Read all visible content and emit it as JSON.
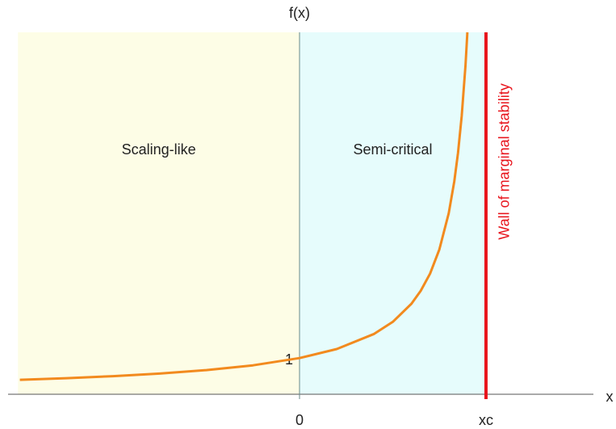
{
  "chart_data": {
    "type": "line",
    "x_label": "x",
    "y_label": "f(x)",
    "xlim": [
      -1.563,
      1.576
    ],
    "ylim": [
      0,
      10
    ],
    "xticks": [
      0,
      {
        "value": 1,
        "label": "xc"
      }
    ],
    "yticks": [
      1
    ],
    "series": [
      {
        "name": "f(x)",
        "color": "#f28a1e",
        "x": [
          -1.5,
          -1.25,
          -1,
          -0.75,
          -0.5,
          -0.25,
          0,
          0.2,
          0.4,
          0.5,
          0.6,
          0.65,
          0.7,
          0.75,
          0.8,
          0.83,
          0.85,
          0.87,
          0.89,
          0.9
        ],
        "values": [
          0.4,
          0.444,
          0.5,
          0.571,
          0.667,
          0.8,
          1,
          1.25,
          1.667,
          2,
          2.5,
          2.857,
          3.333,
          4,
          5,
          5.882,
          6.667,
          7.692,
          9.091,
          10
        ]
      }
    ],
    "regions": [
      {
        "name": "Scaling-like",
        "from": -1.51,
        "to": 0,
        "color": "#fdfde6"
      },
      {
        "name": "Semi-critical",
        "from": 0,
        "to": 1,
        "color": "#e6fcfc"
      }
    ],
    "wall": {
      "text": "Wall of marginal stability",
      "x": 1,
      "color": "#e8141c"
    }
  }
}
